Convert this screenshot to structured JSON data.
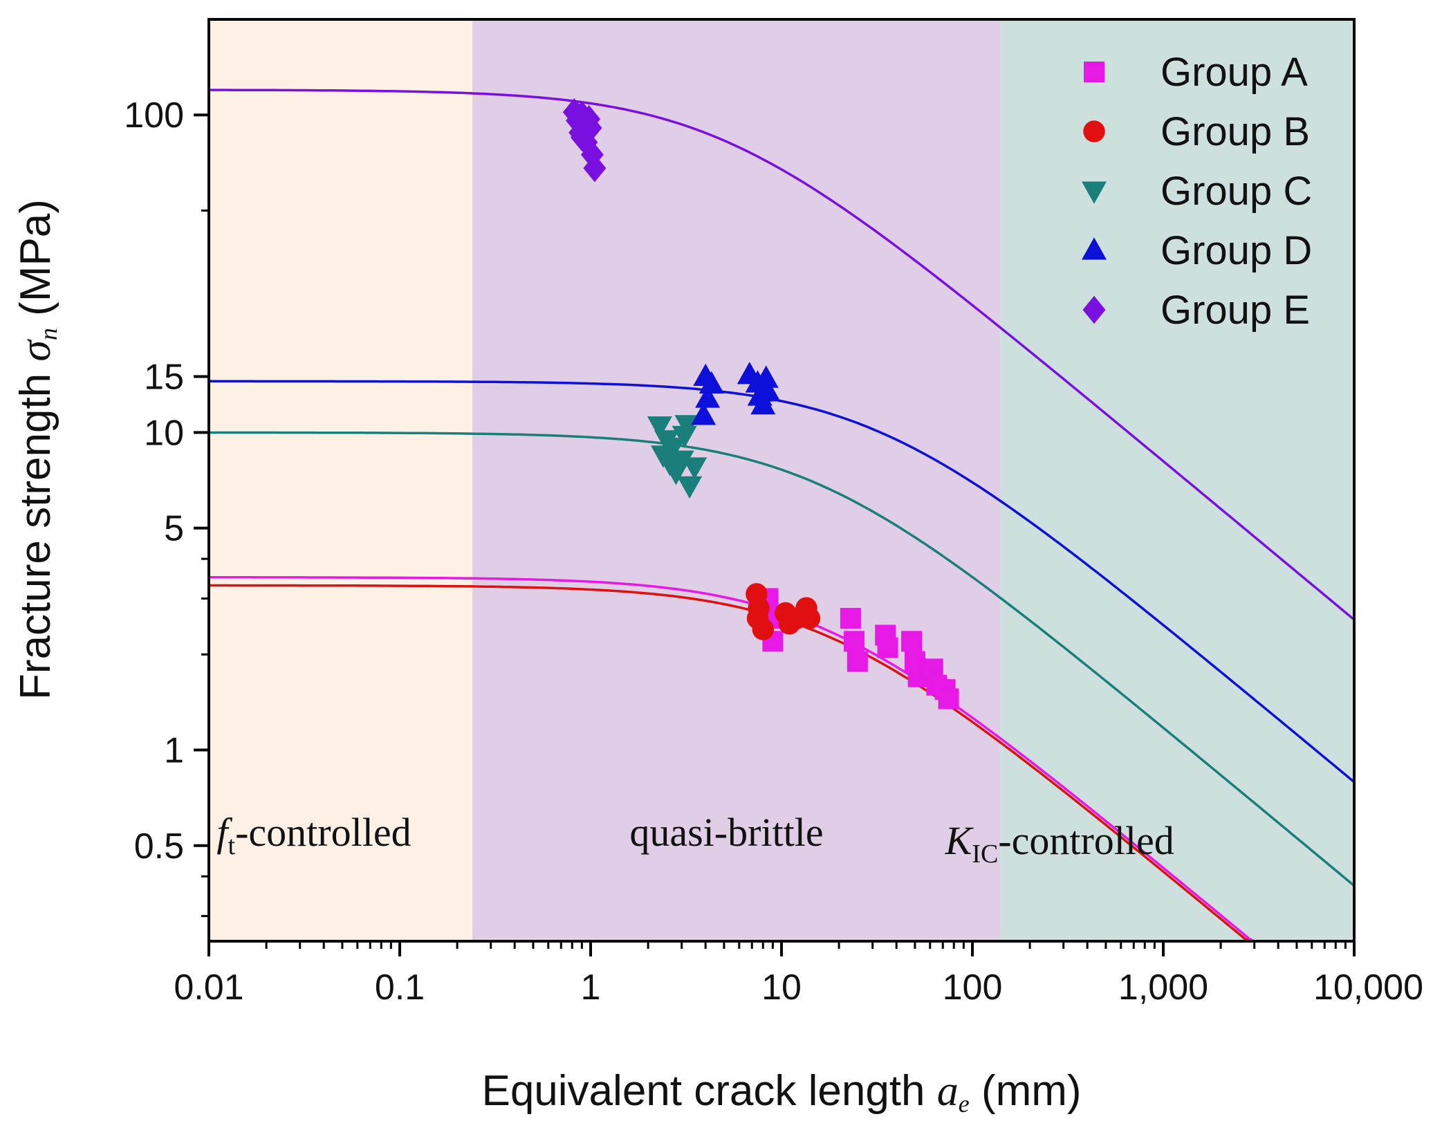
{
  "chart_data": {
    "type": "scatter",
    "xscale": "log",
    "yscale": "log",
    "xlim": [
      0.01,
      10000
    ],
    "ylim": [
      0.25,
      200
    ],
    "xlabel": {
      "text": "Equivalent crack length ",
      "symbol": "a",
      "sub": "e",
      "unit": " (mm)"
    },
    "ylabel": {
      "text": "Fracture strength ",
      "symbol": "σ",
      "sub": "n",
      "unit": " (MPa)"
    },
    "x_ticks": [
      {
        "value": 0.01,
        "label": "0.01"
      },
      {
        "value": 0.1,
        "label": "0.1"
      },
      {
        "value": 1,
        "label": "1"
      },
      {
        "value": 10,
        "label": "10"
      },
      {
        "value": 100,
        "label": "100"
      },
      {
        "value": 1000,
        "label": "1,000"
      },
      {
        "value": 10000,
        "label": "10,000"
      }
    ],
    "y_ticks": [
      {
        "value": 0.5,
        "label": "0.5"
      },
      {
        "value": 1,
        "label": "1"
      },
      {
        "value": 5,
        "label": "5"
      },
      {
        "value": 10,
        "label": "10"
      },
      {
        "value": 15,
        "label": "15"
      },
      {
        "value": 100,
        "label": "100"
      }
    ],
    "regions": [
      {
        "name": "ft-controlled",
        "x0": 0.01,
        "x1": 0.24,
        "color": "#fdf1e6",
        "label_main": "f",
        "label_sub": "t",
        "label_rest": "-controlled",
        "label_x": 0.011,
        "label_y": 0.5
      },
      {
        "name": "quasi-brittle",
        "x0": 0.24,
        "x1": 140,
        "color": "#e0cde6",
        "label_main": "quasi-brittle",
        "label_sub": "",
        "label_rest": "",
        "label_x": 1.6,
        "label_y": 0.5
      },
      {
        "name": "KIC-controlled",
        "x0": 140,
        "x1": 10000,
        "color": "#cde0de",
        "label_main": "K",
        "label_sub": "IC",
        "label_rest": "-controlled",
        "label_x": 72,
        "label_y": 0.47
      }
    ],
    "series": [
      {
        "name": "Group A",
        "marker": "square",
        "color": "#e619e6",
        "ft": 3.5,
        "ach": 15,
        "points": [
          [
            8.5,
            3.0
          ],
          [
            9.5,
            2.6
          ],
          [
            9.0,
            2.2
          ],
          [
            23,
            2.6
          ],
          [
            24,
            2.2
          ],
          [
            25,
            1.9
          ],
          [
            35,
            2.3
          ],
          [
            36,
            2.1
          ],
          [
            48,
            2.2
          ],
          [
            50,
            1.9
          ],
          [
            52,
            1.7
          ],
          [
            62,
            1.8
          ],
          [
            65,
            1.6
          ],
          [
            72,
            1.55
          ],
          [
            75,
            1.45
          ]
        ]
      },
      {
        "name": "Group B",
        "marker": "circle",
        "color": "#e01010",
        "ft": 3.3,
        "ach": 16,
        "points": [
          [
            7.4,
            3.1
          ],
          [
            7.6,
            2.8
          ],
          [
            7.5,
            2.6
          ],
          [
            8.0,
            2.4
          ],
          [
            10.5,
            2.7
          ],
          [
            11,
            2.5
          ],
          [
            13.5,
            2.8
          ],
          [
            14,
            2.6
          ],
          [
            12,
            2.6
          ]
        ]
      },
      {
        "name": "Group C",
        "marker": "triangle-down",
        "color": "#1a7f7a",
        "ft": 10,
        "ach": 14,
        "points": [
          [
            2.3,
            10.5
          ],
          [
            2.5,
            9.5
          ],
          [
            2.4,
            8.5
          ],
          [
            2.6,
            8.0
          ],
          [
            2.7,
            9.0
          ],
          [
            2.8,
            7.5
          ],
          [
            3.0,
            8.2
          ],
          [
            3.1,
            9.8
          ],
          [
            3.2,
            10.6
          ],
          [
            3.3,
            6.8
          ],
          [
            3.5,
            7.8
          ]
        ]
      },
      {
        "name": "Group D",
        "marker": "triangle-up",
        "color": "#0d10d9",
        "ft": 14.5,
        "ach": 30,
        "points": [
          [
            4.0,
            15.0
          ],
          [
            4.1,
            12.8
          ],
          [
            3.9,
            11.3
          ],
          [
            4.3,
            14.2
          ],
          [
            6.8,
            15.2
          ],
          [
            7.5,
            14.3
          ],
          [
            7.7,
            13.0
          ],
          [
            8.0,
            12.2
          ],
          [
            8.3,
            14.8
          ],
          [
            8.5,
            13.4
          ]
        ]
      },
      {
        "name": "Group E",
        "marker": "diamond",
        "color": "#7a10e0",
        "ft": 120,
        "ach": 4.6,
        "points": [
          [
            0.82,
            102
          ],
          [
            0.85,
            96
          ],
          [
            0.88,
            88
          ],
          [
            0.9,
            100
          ],
          [
            0.92,
            92
          ],
          [
            0.95,
            82
          ],
          [
            0.98,
            97
          ],
          [
            1.0,
            91
          ],
          [
            1.02,
            75
          ],
          [
            1.05,
            68
          ],
          [
            0.9,
            85
          ]
        ]
      }
    ]
  }
}
